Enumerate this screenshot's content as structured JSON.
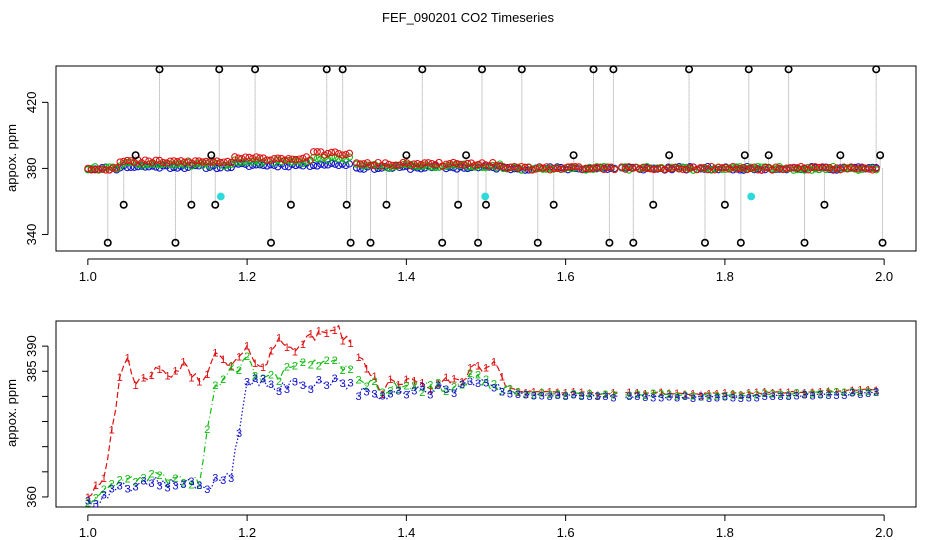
{
  "figure": {
    "title": "FEF_090201  CO2 Timeseries"
  },
  "chart_data": [
    {
      "type": "scatter",
      "panel": "top",
      "title": "FEF_090201  CO2 Timeseries",
      "xlabel": "",
      "ylabel": "appox. ppm",
      "xlim": [
        0.96,
        2.04
      ],
      "ylim": [
        330,
        442
      ],
      "xticks": [
        1.0,
        1.2,
        1.4,
        1.6,
        1.8,
        2.0
      ],
      "xtick_labels": [
        "1.0",
        "1.2",
        "1.4",
        "1.6",
        "1.8",
        "2.0"
      ],
      "yticks": [
        340,
        380,
        420
      ],
      "ytick_labels": [
        "340",
        "380",
        "420"
      ],
      "gaps": [
        [
          1.33,
          1.335
        ],
        [
          1.665,
          1.67
        ]
      ],
      "outliers_x": [
        1.025,
        1.045,
        1.06,
        1.09,
        1.11,
        1.13,
        1.155,
        1.16,
        1.165,
        1.21,
        1.23,
        1.255,
        1.3,
        1.32,
        1.325,
        1.33,
        1.355,
        1.375,
        1.4,
        1.42,
        1.445,
        1.465,
        1.475,
        1.49,
        1.495,
        1.5,
        1.545,
        1.565,
        1.585,
        1.61,
        1.635,
        1.655,
        1.66,
        1.685,
        1.71,
        1.73,
        1.755,
        1.775,
        1.8,
        1.82,
        1.825,
        1.83,
        1.855,
        1.88,
        1.9,
        1.925,
        1.945,
        1.99,
        1.995,
        1.998
      ],
      "outliers_y": [
        335,
        358,
        388,
        440,
        335,
        358,
        388,
        358,
        440,
        440,
        335,
        358,
        440,
        440,
        358,
        335,
        335,
        358,
        388,
        440,
        335,
        358,
        388,
        335,
        440,
        358,
        440,
        335,
        358,
        388,
        440,
        335,
        440,
        335,
        358,
        388,
        440,
        335,
        358,
        335,
        388,
        440,
        388,
        440,
        335,
        358,
        388,
        440,
        388,
        335
      ],
      "flag_points": {
        "x": [
          1.167,
          1.499,
          1.833
        ],
        "y": [
          363,
          363,
          363
        ],
        "color": "#2fd9d9"
      },
      "series": [
        {
          "name": "1",
          "color": "#dd1111"
        },
        {
          "name": "2",
          "color": "#11bb11"
        },
        {
          "name": "3",
          "color": "#1111cc"
        }
      ]
    },
    {
      "type": "line",
      "panel": "bottom",
      "title": "",
      "xlabel": "",
      "ylabel": "appox. ppm",
      "xlim": [
        0.96,
        2.04
      ],
      "ylim": [
        358,
        395
      ],
      "xticks": [
        1.0,
        1.2,
        1.4,
        1.6,
        1.8,
        2.0
      ],
      "xtick_labels": [
        "1.0",
        "1.2",
        "1.4",
        "1.6",
        "1.8",
        "2.0"
      ],
      "yticks": [
        360,
        365,
        370,
        375,
        380,
        385,
        390
      ],
      "ytick_labels": [
        "360",
        "",
        "",
        "",
        "",
        "385",
        "390"
      ],
      "gaps": [
        [
          1.33,
          1.335
        ],
        [
          1.665,
          1.67
        ]
      ],
      "x": [
        1.0,
        1.02,
        1.04,
        1.05,
        1.06,
        1.08,
        1.1,
        1.12,
        1.14,
        1.16,
        1.18,
        1.2,
        1.22,
        1.24,
        1.26,
        1.28,
        1.3,
        1.31,
        1.32,
        1.34,
        1.36,
        1.37,
        1.38,
        1.4,
        1.42,
        1.44,
        1.46,
        1.48,
        1.5,
        1.51,
        1.52,
        1.54,
        1.56,
        1.6,
        1.65,
        1.7,
        1.75,
        1.8,
        1.85,
        1.9,
        1.95,
        1.99
      ],
      "series": [
        {
          "name": "1",
          "color": "#dd1111",
          "style": "dashed",
          "marker": "1",
          "values": [
            360.5,
            364.0,
            383.0,
            387.0,
            382.0,
            385.0,
            384.0,
            386.0,
            383.0,
            388.0,
            386.0,
            389.0,
            386.0,
            391.0,
            390.0,
            391.5,
            393.0,
            394.0,
            392.0,
            388.0,
            384.0,
            381.0,
            383.0,
            383.0,
            382.0,
            382.5,
            383.0,
            385.0,
            386.0,
            387.0,
            383.0,
            381.0,
            381.0,
            380.8,
            380.5,
            380.8,
            380.5,
            380.5,
            380.8,
            381.0,
            381.0,
            381.5
          ]
        },
        {
          "name": "2",
          "color": "#11bb11",
          "style": "dashdot",
          "marker": "2",
          "values": [
            359.5,
            361.0,
            363.0,
            364.0,
            363.0,
            364.0,
            363.5,
            364.0,
            363.0,
            382.0,
            385.0,
            387.0,
            383.0,
            384.0,
            386.0,
            386.5,
            387.0,
            388.0,
            386.0,
            384.0,
            382.0,
            381.0,
            382.0,
            382.0,
            381.5,
            382.0,
            381.0,
            384.0,
            383.0,
            382.0,
            381.5,
            380.8,
            380.5,
            380.5,
            380.3,
            380.5,
            380.3,
            380.2,
            380.4,
            380.6,
            380.8,
            381.0
          ]
        },
        {
          "name": "3",
          "color": "#1111cc",
          "style": "dotted",
          "marker": "3",
          "values": [
            359.0,
            360.0,
            362.0,
            362.5,
            362.0,
            363.0,
            362.5,
            363.0,
            362.0,
            363.0,
            364.0,
            383.0,
            382.5,
            382.0,
            382.5,
            382.5,
            383.0,
            383.5,
            383.0,
            381.0,
            380.0,
            380.0,
            380.5,
            381.0,
            381.0,
            381.5,
            381.0,
            382.5,
            383.0,
            382.5,
            381.0,
            380.5,
            380.3,
            380.2,
            380.0,
            380.0,
            379.8,
            379.8,
            380.0,
            380.2,
            380.4,
            380.8
          ]
        }
      ]
    }
  ]
}
